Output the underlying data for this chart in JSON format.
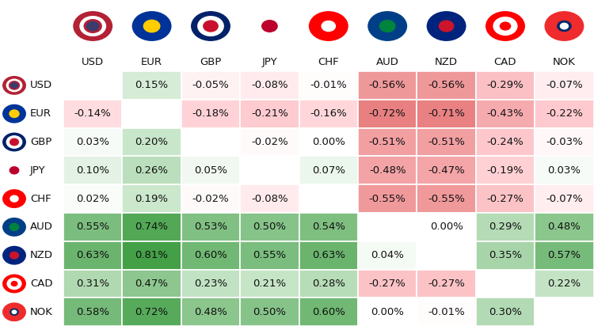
{
  "currencies": [
    "USD",
    "EUR",
    "GBP",
    "JPY",
    "CHF",
    "AUD",
    "NZD",
    "CAD",
    "NOK"
  ],
  "values": [
    [
      null,
      0.15,
      -0.05,
      -0.08,
      -0.01,
      -0.56,
      -0.56,
      -0.29,
      -0.07
    ],
    [
      -0.14,
      null,
      -0.18,
      -0.21,
      -0.16,
      -0.72,
      -0.71,
      -0.43,
      -0.22
    ],
    [
      0.03,
      0.2,
      null,
      -0.02,
      0.0,
      -0.51,
      -0.51,
      -0.24,
      -0.03
    ],
    [
      0.1,
      0.26,
      0.05,
      null,
      0.07,
      -0.48,
      -0.47,
      -0.19,
      0.03
    ],
    [
      0.02,
      0.19,
      -0.02,
      -0.08,
      null,
      -0.55,
      -0.55,
      -0.27,
      -0.07
    ],
    [
      0.55,
      0.74,
      0.53,
      0.5,
      0.54,
      null,
      0.0,
      0.29,
      0.48
    ],
    [
      0.63,
      0.81,
      0.6,
      0.55,
      0.63,
      0.04,
      null,
      0.35,
      0.57
    ],
    [
      0.31,
      0.47,
      0.23,
      0.21,
      0.28,
      -0.27,
      -0.27,
      null,
      0.22
    ],
    [
      0.58,
      0.72,
      0.48,
      0.5,
      0.6,
      0.0,
      -0.01,
      0.3,
      null
    ]
  ],
  "labels": [
    [
      "",
      "0.15%",
      "-0.05%",
      "-0.08%",
      "-0.01%",
      "-0.56%",
      "-0.56%",
      "-0.29%",
      "-0.07%"
    ],
    [
      "-0.14%",
      "",
      "-0.18%",
      "-0.21%",
      "-0.16%",
      "-0.72%",
      "-0.71%",
      "-0.43%",
      "-0.22%"
    ],
    [
      "0.03%",
      "0.20%",
      "",
      "-0.02%",
      "0.00%",
      "-0.51%",
      "-0.51%",
      "-0.24%",
      "-0.03%"
    ],
    [
      "0.10%",
      "0.26%",
      "0.05%",
      "",
      "0.07%",
      "-0.48%",
      "-0.47%",
      "-0.19%",
      "0.03%"
    ],
    [
      "0.02%",
      "0.19%",
      "-0.02%",
      "-0.08%",
      "",
      "-0.55%",
      "-0.55%",
      "-0.27%",
      "-0.07%"
    ],
    [
      "0.55%",
      "0.74%",
      "0.53%",
      "0.50%",
      "0.54%",
      "",
      "0.00%",
      "0.29%",
      "0.48%"
    ],
    [
      "0.63%",
      "0.81%",
      "0.60%",
      "0.55%",
      "0.63%",
      "0.04%",
      "",
      "0.35%",
      "0.57%"
    ],
    [
      "0.31%",
      "0.47%",
      "0.23%",
      "0.21%",
      "0.28%",
      "-0.27%",
      "-0.27%",
      "",
      "0.22%"
    ],
    [
      "0.58%",
      "0.72%",
      "0.48%",
      "0.50%",
      "0.60%",
      "0.00%",
      "-0.01%",
      "0.30%",
      ""
    ]
  ],
  "bg_color": "#ffffff",
  "text_color": "#111111",
  "header_fontsize": 9.5,
  "cell_fontsize": 9.5,
  "flag_designs": {
    "USD": [
      [
        "#B22234",
        1.0
      ],
      [
        "#FFFFFF",
        0.72
      ],
      [
        "#B22234",
        0.55
      ],
      [
        "#3C3B6E",
        0.4
      ]
    ],
    "EUR": [
      [
        "#003399",
        1.0
      ],
      [
        "#FFCC00",
        0.45
      ]
    ],
    "GBP": [
      [
        "#012169",
        1.0
      ],
      [
        "#C8102E",
        0.55
      ],
      [
        "#FFFFFF",
        0.35
      ]
    ],
    "JPY": [
      [
        "#FFFFFF",
        1.0
      ],
      [
        "#BC002D",
        0.42
      ]
    ],
    "CHF": [
      [
        "#FF0000",
        1.0
      ],
      [
        "#FFFFFF",
        0.38
      ]
    ],
    "AUD": [
      [
        "#00008B",
        1.0
      ],
      [
        "#009B77",
        0.45
      ]
    ],
    "NZD": [
      [
        "#00247D",
        1.0
      ],
      [
        "#CC142B",
        0.42
      ]
    ],
    "CAD": [
      [
        "#FF0000",
        1.0
      ],
      [
        "#FFFFFF",
        0.65
      ],
      [
        "#FF0000",
        0.3
      ]
    ],
    "NOK": [
      [
        "#EF2B2D",
        1.0
      ],
      [
        "#002868",
        0.38
      ],
      [
        "#FFFFFF",
        0.25
      ]
    ]
  }
}
